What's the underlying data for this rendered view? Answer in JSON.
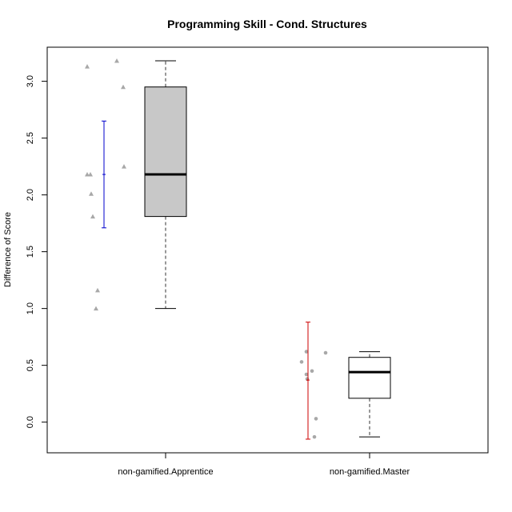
{
  "chart_data": {
    "type": "box",
    "title": "Programming Skill - Cond. Structures",
    "xlabel": "",
    "ylabel": "Difference of Score",
    "ylim": [
      -0.27,
      3.3
    ],
    "y_ticks": [
      "0.0",
      "0.5",
      "1.0",
      "1.5",
      "2.0",
      "2.5",
      "3.0"
    ],
    "categories": [
      "non-gamified.Apprentice",
      "non-gamified.Master"
    ],
    "groups": [
      {
        "name": "non-gamified.Apprentice",
        "box": {
          "min": 1.0,
          "q1": 1.81,
          "median": 2.18,
          "q3": 2.95,
          "max": 3.18
        },
        "box_fill": "#c8c8c8",
        "point_shape": "triangle",
        "point_color": "#a8a8a8",
        "points": [
          3.13,
          3.18,
          2.95,
          2.25,
          2.18,
          2.18,
          2.01,
          1.81,
          1.16,
          1.0
        ],
        "interval": {
          "low": 1.71,
          "mean": 2.18,
          "high": 2.65,
          "color": "#0000cc"
        }
      },
      {
        "name": "non-gamified.Master",
        "box": {
          "min": -0.13,
          "q1": 0.21,
          "median": 0.44,
          "q3": 0.57,
          "max": 0.62
        },
        "box_fill": "#ffffff",
        "point_shape": "circle",
        "point_color": "#a8a8a8",
        "points": [
          0.62,
          0.61,
          0.53,
          0.45,
          0.42,
          0.38,
          0.03,
          -0.13
        ],
        "interval": {
          "low": -0.15,
          "mean": 0.37,
          "high": 0.88,
          "color": "#cc0000"
        }
      }
    ],
    "grid": false,
    "legend": "none"
  }
}
